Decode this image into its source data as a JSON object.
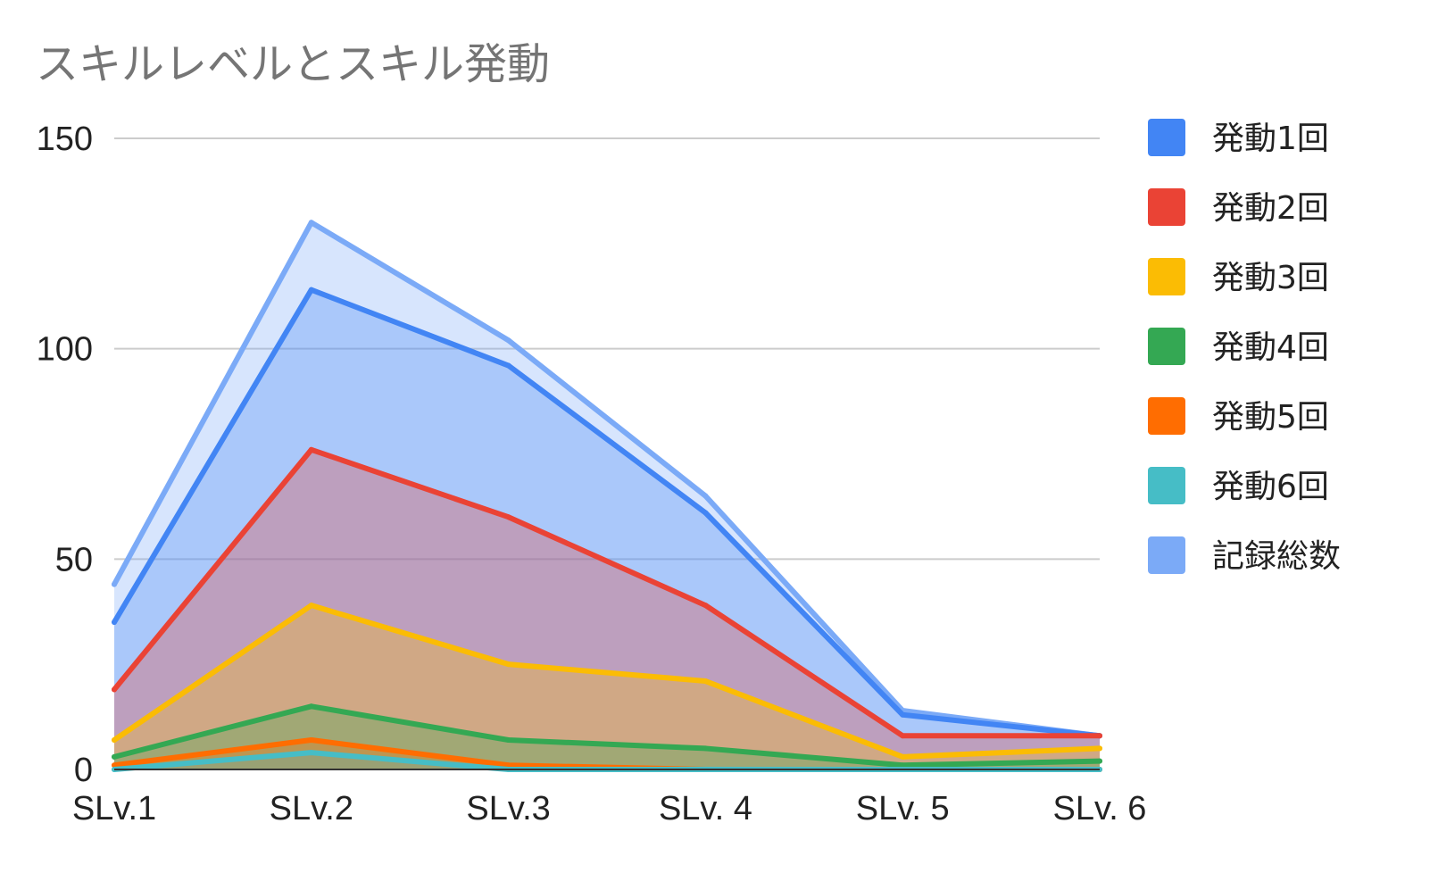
{
  "chart_data": {
    "type": "area",
    "title": "スキルレベルとスキル発動",
    "categories": [
      "SLv.1",
      "SLv.2",
      "SLv.3",
      "SLv. 4",
      "SLv. 5",
      "SLv. 6"
    ],
    "y_ticks": [
      "0",
      "50",
      "100",
      "150"
    ],
    "ylim": [
      0,
      150
    ],
    "grid": true,
    "legend_position": "right",
    "series": [
      {
        "name": "発動1回",
        "color": "#4285F4",
        "values": [
          35,
          114,
          96,
          61,
          13,
          8
        ]
      },
      {
        "name": "発動2回",
        "color": "#EA4335",
        "values": [
          19,
          76,
          60,
          39,
          8,
          8
        ]
      },
      {
        "name": "発動3回",
        "color": "#FBBC04",
        "values": [
          7,
          39,
          25,
          21,
          3,
          5
        ]
      },
      {
        "name": "発動4回",
        "color": "#34A853",
        "values": [
          3,
          15,
          7,
          5,
          1,
          2
        ]
      },
      {
        "name": "発動5回",
        "color": "#FF6D01",
        "values": [
          1,
          7,
          1,
          0,
          0,
          0
        ]
      },
      {
        "name": "発動6回",
        "color": "#46BDC6",
        "values": [
          0,
          4,
          0,
          0,
          0,
          0
        ]
      },
      {
        "name": "記録総数",
        "color": "#7BAAF7",
        "values": [
          44,
          130,
          102,
          65,
          14,
          8
        ]
      }
    ]
  }
}
